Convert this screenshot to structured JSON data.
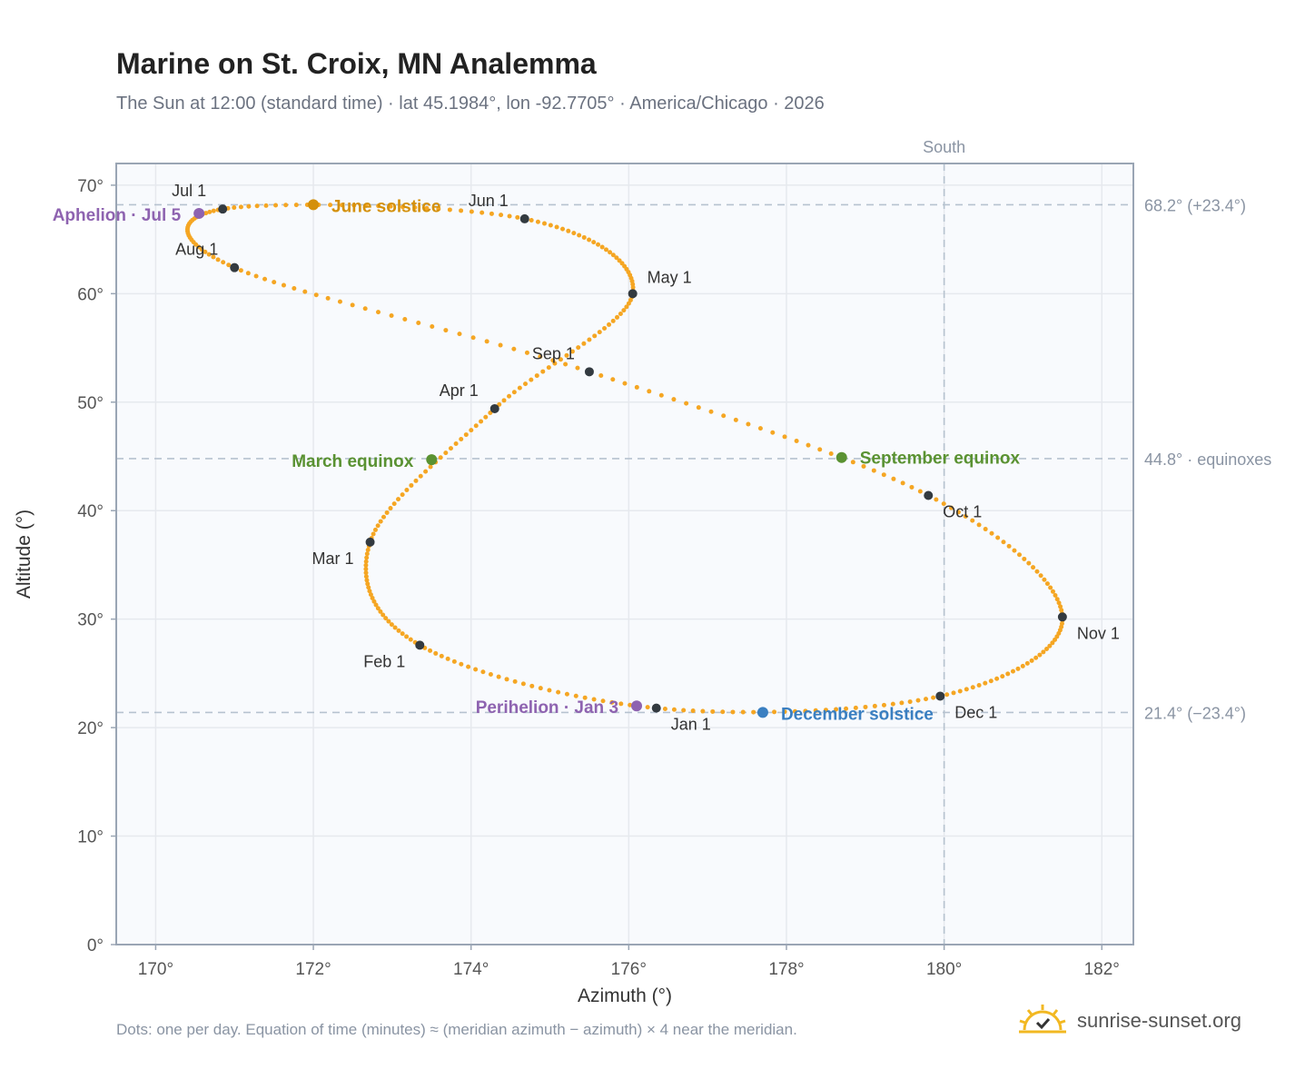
{
  "title": "Marine on St. Croix, MN Analemma",
  "subtitle": "The Sun at 12:00 (standard time) · lat 45.1984°, lon -92.7705° · America/Chicago · 2026",
  "footnote": "Dots: one per day. Equation of time (minutes) ≈ (meridian azimuth − azimuth) × 4 near the meridian.",
  "brand": "sunrise-sunset.org",
  "colors": {
    "curve": "#f5a623",
    "month_dot": "#333a40",
    "solstice_june": "#d4900a",
    "equinox": "#5a9232",
    "solstice_december": "#3a7fc1",
    "apsis": "#8e63b0",
    "grid": "#e6e9ee",
    "plot_bg": "#f8fafd",
    "axis": "#9aa5b4",
    "ref_line": "#b6c2cf"
  },
  "chart_data": {
    "type": "scatter",
    "title": "Marine on St. Croix, MN Analemma",
    "xlabel": "Azimuth (°)",
    "ylabel": "Altitude (°)",
    "xlim": [
      169.5,
      182.4
    ],
    "ylim": [
      0,
      72
    ],
    "x_ticks": [
      "170°",
      "172°",
      "174°",
      "176°",
      "178°",
      "180°",
      "182°"
    ],
    "y_ticks": [
      "0°",
      "10°",
      "20°",
      "30°",
      "40°",
      "50°",
      "60°",
      "70°"
    ],
    "grid": true,
    "south_azimuth": 180,
    "south_label": "South",
    "reference_lines": [
      {
        "altitude": 68.2,
        "label": "68.2° (+23.4°)"
      },
      {
        "altitude": 44.8,
        "label": "44.8° · equinoxes"
      },
      {
        "altitude": 21.4,
        "label": "21.4° (−23.4°)"
      }
    ],
    "months": [
      {
        "label": "Jan 1",
        "az": 176.35,
        "alt": 21.8
      },
      {
        "label": "Feb 1",
        "az": 173.35,
        "alt": 27.6
      },
      {
        "label": "Mar 1",
        "az": 172.72,
        "alt": 37.1
      },
      {
        "label": "Apr 1",
        "az": 174.3,
        "alt": 49.4
      },
      {
        "label": "May 1",
        "az": 176.05,
        "alt": 60.0
      },
      {
        "label": "Jun 1",
        "az": 174.68,
        "alt": 66.9
      },
      {
        "label": "Jul 1",
        "az": 170.85,
        "alt": 67.8
      },
      {
        "label": "Aug 1",
        "az": 171.0,
        "alt": 62.4
      },
      {
        "label": "Sep 1",
        "az": 175.5,
        "alt": 52.8
      },
      {
        "label": "Oct 1",
        "az": 179.8,
        "alt": 41.4
      },
      {
        "label": "Nov 1",
        "az": 181.5,
        "alt": 30.2
      },
      {
        "label": "Dec 1",
        "az": 179.95,
        "alt": 22.9
      }
    ],
    "events": [
      {
        "label": "June solstice",
        "az": 172.0,
        "alt": 68.2,
        "kind": "solstice_june"
      },
      {
        "label": "March equinox",
        "az": 173.5,
        "alt": 44.7,
        "kind": "equinox"
      },
      {
        "label": "September equinox",
        "az": 178.7,
        "alt": 44.9,
        "kind": "equinox"
      },
      {
        "label": "December solstice",
        "az": 177.7,
        "alt": 21.4,
        "kind": "solstice_december"
      },
      {
        "label": "Aphelion · Jul 5",
        "az": 170.55,
        "alt": 67.4,
        "kind": "apsis"
      },
      {
        "label": "Perihelion · Jan 3",
        "az": 176.1,
        "alt": 22.0,
        "kind": "apsis"
      }
    ]
  }
}
